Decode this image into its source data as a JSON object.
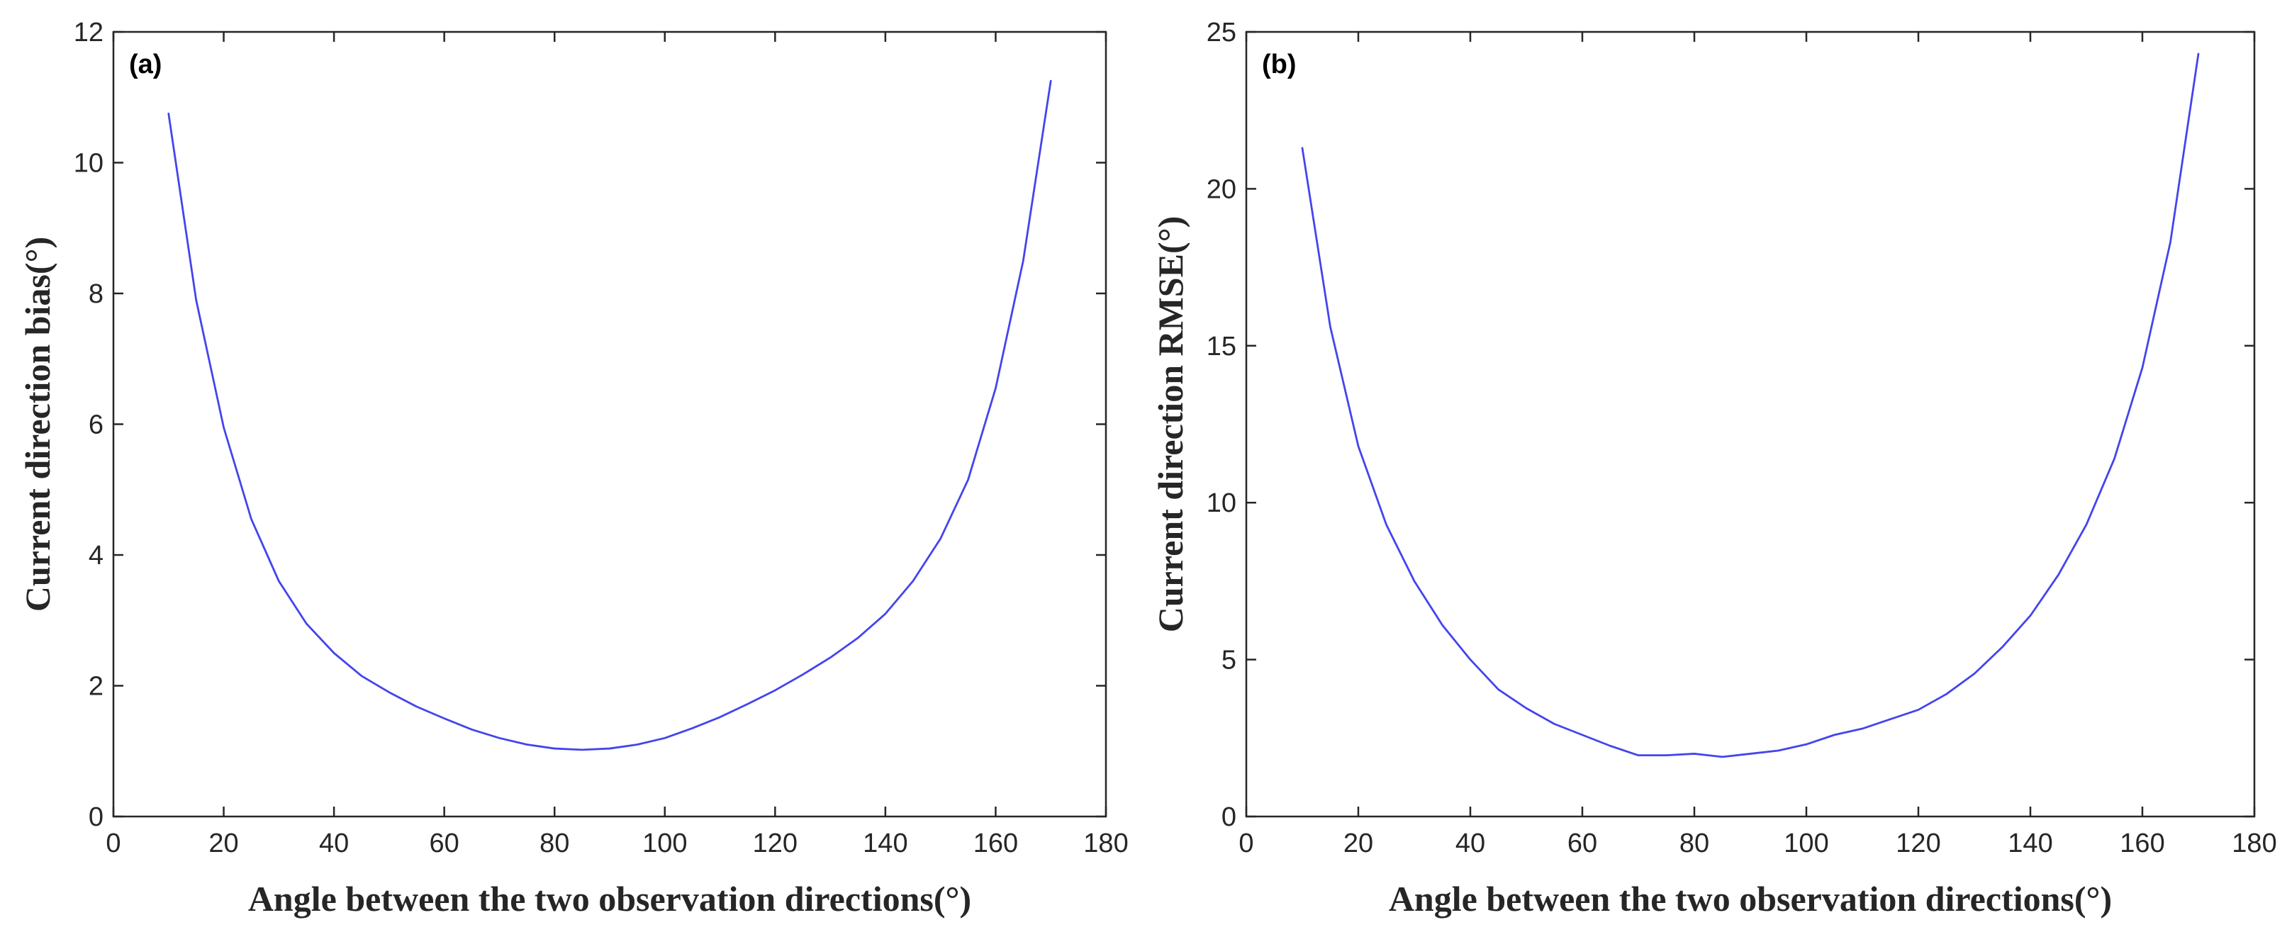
{
  "chart_data": [
    {
      "type": "line",
      "panel_label": "(a)",
      "xlabel": "Angle between the two observation directions(°)",
      "ylabel": "Current direction bias(°)",
      "xlim": [
        0,
        180
      ],
      "ylim": [
        0,
        12
      ],
      "xticks": [
        0,
        20,
        40,
        60,
        80,
        100,
        120,
        140,
        160,
        180
      ],
      "yticks": [
        0,
        2,
        4,
        6,
        8,
        10,
        12
      ],
      "grid": false,
      "line_color": "#4444ee",
      "series": [
        {
          "name": "bias",
          "x": [
            10,
            15,
            20,
            25,
            30,
            35,
            40,
            45,
            50,
            55,
            60,
            65,
            70,
            75,
            80,
            85,
            90,
            95,
            100,
            105,
            110,
            115,
            120,
            125,
            130,
            135,
            140,
            145,
            150,
            155,
            160,
            165,
            170
          ],
          "values": [
            10.75,
            7.9,
            5.95,
            4.55,
            3.6,
            2.95,
            2.5,
            2.15,
            1.9,
            1.68,
            1.5,
            1.33,
            1.2,
            1.1,
            1.04,
            1.02,
            1.04,
            1.1,
            1.2,
            1.35,
            1.52,
            1.72,
            1.93,
            2.17,
            2.43,
            2.73,
            3.1,
            3.6,
            4.25,
            5.15,
            6.55,
            8.5,
            11.25
          ]
        }
      ]
    },
    {
      "type": "line",
      "panel_label": "(b)",
      "xlabel": "Angle between the two observation directions(°)",
      "ylabel": "Current direction RMSE(°)",
      "xlim": [
        0,
        180
      ],
      "ylim": [
        0,
        25
      ],
      "xticks": [
        0,
        20,
        40,
        60,
        80,
        100,
        120,
        140,
        160,
        180
      ],
      "yticks": [
        0,
        5,
        10,
        15,
        20,
        25
      ],
      "grid": false,
      "line_color": "#4444ee",
      "series": [
        {
          "name": "RMSE",
          "x": [
            10,
            15,
            20,
            25,
            30,
            35,
            40,
            45,
            50,
            55,
            60,
            65,
            70,
            75,
            80,
            85,
            90,
            95,
            100,
            105,
            110,
            115,
            120,
            125,
            130,
            135,
            140,
            145,
            150,
            155,
            160,
            165,
            170
          ],
          "values": [
            21.3,
            15.6,
            11.8,
            9.3,
            7.5,
            6.1,
            5.0,
            4.05,
            3.45,
            2.95,
            2.6,
            2.25,
            1.95,
            1.95,
            2.0,
            1.9,
            2.0,
            2.1,
            2.3,
            2.6,
            2.8,
            3.1,
            3.4,
            3.9,
            4.55,
            5.4,
            6.4,
            7.7,
            9.3,
            11.4,
            14.3,
            18.3,
            24.3
          ]
        }
      ]
    }
  ]
}
